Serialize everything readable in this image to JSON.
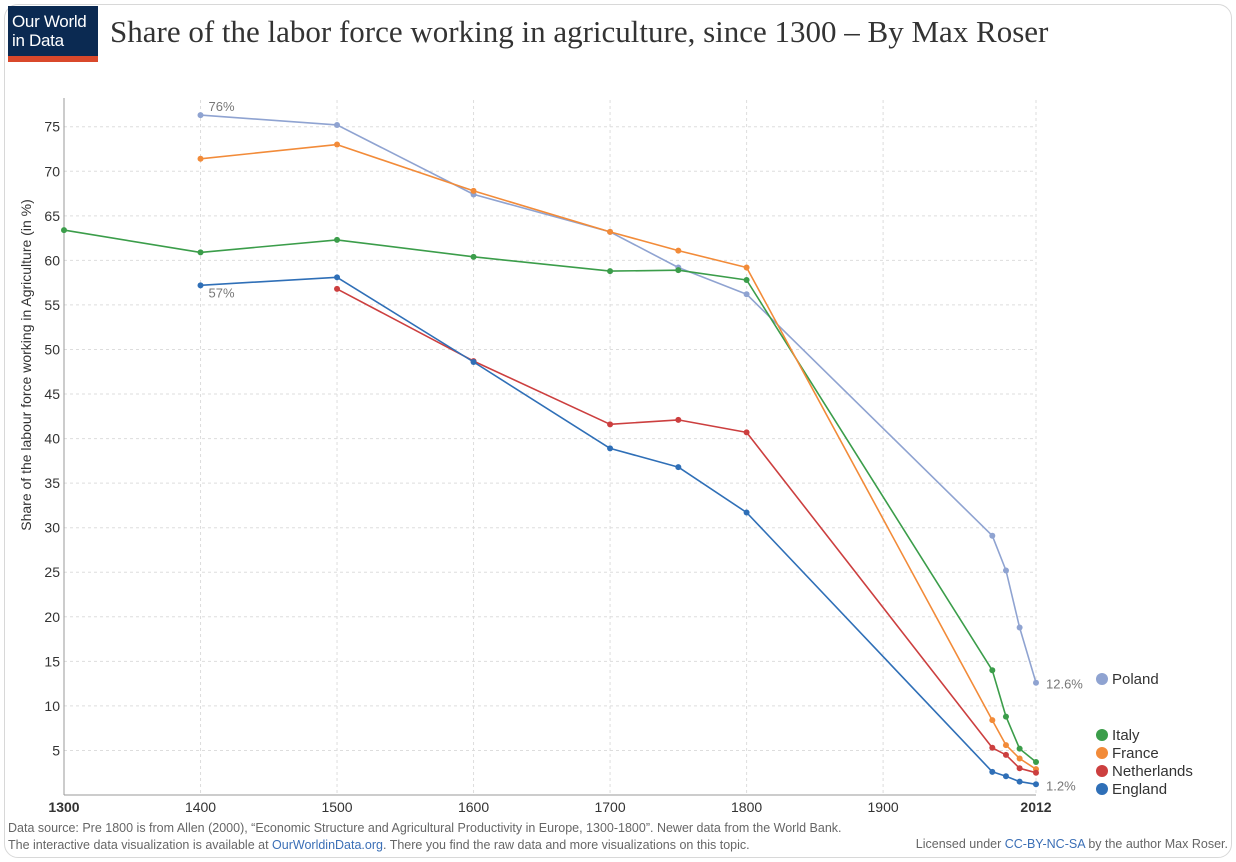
{
  "header": {
    "logo_line1": "Our World",
    "logo_line2": "in Data",
    "title": "Share of the labor force working in agriculture, since 1300 – By Max Roser"
  },
  "footer": {
    "source_text": "Data source: Pre 1800 is from Allen (2000), “Economic Structure and Agricultural Productivity in Europe, 1300-1800”. Newer data from the World Bank.",
    "interactive_prefix": "The interactive data visualization is available at ",
    "interactive_link": "OurWorldinData.org",
    "interactive_suffix": ". There you find the raw data and more visualizations on this topic.",
    "license_prefix": "Licensed under ",
    "license_link": "CC-BY-NC-SA",
    "license_suffix": " by the author Max Roser."
  },
  "chart_data": {
    "type": "line",
    "xlabel": "",
    "ylabel": "Share of the labour force working in Agriculture (in %)",
    "xlim": [
      1300,
      2012
    ],
    "ylim": [
      0,
      78
    ],
    "x_ticks": [
      1300,
      1400,
      1500,
      1600,
      1700,
      1800,
      1900,
      2012
    ],
    "x_tick_labels": [
      "1300",
      "1400",
      "1500",
      "1600",
      "1700",
      "1800",
      "1900",
      "2012"
    ],
    "y_ticks": [
      5,
      10,
      15,
      20,
      25,
      30,
      35,
      40,
      45,
      50,
      55,
      60,
      65,
      70,
      75
    ],
    "grid": true,
    "legend_position": "right",
    "series": [
      {
        "name": "Poland",
        "color": "#8fa3d1",
        "x": [
          1400,
          1500,
          1600,
          1700,
          1750,
          1800,
          1980,
          1990,
          2000,
          2012
        ],
        "y": [
          76.3,
          75.2,
          67.4,
          63.2,
          59.2,
          56.2,
          29.1,
          25.2,
          18.8,
          12.6
        ]
      },
      {
        "name": "Italy",
        "color": "#3b9d4a",
        "x": [
          1300,
          1400,
          1500,
          1600,
          1700,
          1750,
          1800,
          1980,
          1990,
          2000,
          2012
        ],
        "y": [
          63.4,
          60.9,
          62.3,
          60.4,
          58.8,
          58.9,
          57.8,
          14.0,
          8.8,
          5.2,
          3.7
        ]
      },
      {
        "name": "France",
        "color": "#f28b39",
        "x": [
          1400,
          1500,
          1600,
          1700,
          1750,
          1800,
          1980,
          1990,
          2000,
          2012
        ],
        "y": [
          71.4,
          73.0,
          67.8,
          63.2,
          61.1,
          59.2,
          8.4,
          5.6,
          4.1,
          2.9
        ]
      },
      {
        "name": "Netherlands",
        "color": "#cc3f3f",
        "x": [
          1500,
          1600,
          1700,
          1750,
          1800,
          1980,
          1990,
          2000,
          2012
        ],
        "y": [
          56.8,
          48.7,
          41.6,
          42.1,
          40.7,
          5.3,
          4.5,
          3.0,
          2.5
        ]
      },
      {
        "name": "England",
        "color": "#2f6fb7",
        "x": [
          1400,
          1500,
          1600,
          1700,
          1750,
          1800,
          1980,
          1990,
          2000,
          2012
        ],
        "y": [
          57.2,
          58.1,
          48.6,
          38.9,
          36.8,
          31.7,
          2.6,
          2.1,
          1.5,
          1.2
        ]
      }
    ],
    "annotations": [
      {
        "text": "76%",
        "x": 1400,
        "y": 76.3
      },
      {
        "text": "57%",
        "x": 1400,
        "y": 57.2
      },
      {
        "text": "12.6%",
        "x": 2012,
        "y": 12.6
      },
      {
        "text": "1.2%",
        "x": 2012,
        "y": 1.2
      }
    ],
    "legend": [
      {
        "name": "Poland",
        "color": "#8fa3d1"
      },
      {
        "name": "Italy",
        "color": "#3b9d4a"
      },
      {
        "name": "France",
        "color": "#f28b39"
      },
      {
        "name": "Netherlands",
        "color": "#cc3f3f"
      },
      {
        "name": "England",
        "color": "#2f6fb7"
      }
    ]
  }
}
